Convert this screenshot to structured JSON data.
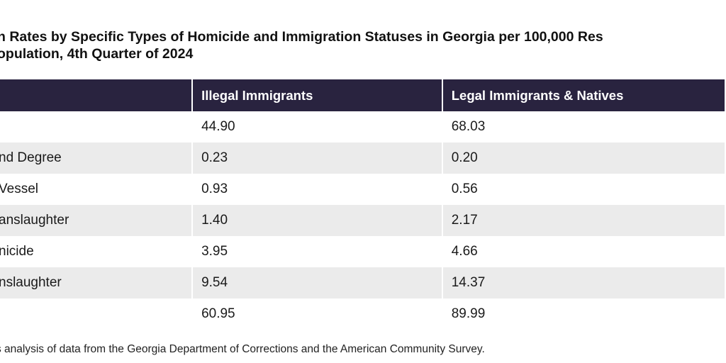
{
  "title": {
    "line1": "n Rates by Specific Types of Homicide and Immigration Statuses in Georgia per 100,000 Res",
    "line2": "opulation, 4th Quarter of 2024"
  },
  "table": {
    "headers": [
      "",
      "Illegal Immigrants",
      "Legal Immigrants & Natives"
    ],
    "rows": [
      {
        "label": "",
        "illegal": "44.90",
        "legal": "68.03"
      },
      {
        "label": "nd Degree",
        "illegal": "0.23",
        "legal": "0.20"
      },
      {
        "label": "Vessel",
        "illegal": "0.93",
        "legal": "0.56"
      },
      {
        "label": "anslaughter",
        "illegal": "1.40",
        "legal": "2.17"
      },
      {
        "label": "nicide",
        "illegal": "3.95",
        "legal": "4.66"
      },
      {
        "label": "nslaughter",
        "illegal": "9.54",
        "legal": "14.37"
      },
      {
        "label": "",
        "illegal": "60.95",
        "legal": "89.99"
      }
    ]
  },
  "source": "s analysis of data from the Georgia Department of Corrections and the American Community Survey.",
  "colors": {
    "header_bg": "#29233f",
    "alt_row": "#ebebeb"
  }
}
